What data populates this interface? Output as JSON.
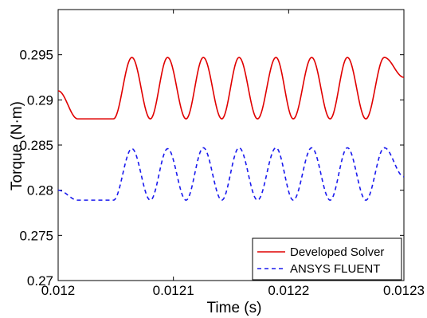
{
  "chart_data": {
    "type": "line",
    "title": "",
    "xlabel": "Time (s)",
    "ylabel": "Torque (N·m)",
    "xlim": [
      0.012,
      0.0123
    ],
    "ylim": [
      0.27,
      0.3
    ],
    "x_ticks": [
      "0.012",
      "0.0121",
      "0.0122",
      "0.0123"
    ],
    "y_ticks": [
      "0.27",
      "0.275",
      "0.28",
      "0.285",
      "0.29",
      "0.295"
    ],
    "grid": false,
    "legend_position": "bottom-right",
    "series": [
      {
        "name": "Developed Solver",
        "color": "#e00000",
        "style": "solid",
        "period_s": 3.13e-05,
        "peaks": [
          [
            0.012064,
            0.2947
          ],
          [
            0.012095,
            0.2947
          ],
          [
            0.012126,
            0.2947
          ],
          [
            0.012157,
            0.2947
          ],
          [
            0.012189,
            0.2947
          ],
          [
            0.01222,
            0.2947
          ],
          [
            0.012251,
            0.2947
          ],
          [
            0.012283,
            0.2947
          ]
        ],
        "troughs": [
          [
            0.012017,
            0.2879
          ],
          [
            0.012048,
            0.2879
          ],
          [
            0.01208,
            0.2879
          ],
          [
            0.012111,
            0.2879
          ],
          [
            0.012142,
            0.2879
          ],
          [
            0.012173,
            0.2879
          ],
          [
            0.012204,
            0.2879
          ],
          [
            0.012236,
            0.2879
          ],
          [
            0.012267,
            0.2879
          ]
        ],
        "start": [
          0.012,
          0.291
        ],
        "end": [
          0.0123,
          0.2925
        ]
      },
      {
        "name": "ANSYS FLUENT",
        "color": "#1a1aee",
        "style": "dashed",
        "period_s": 3.13e-05,
        "peaks": [
          [
            0.012064,
            0.2846
          ],
          [
            0.012095,
            0.2846
          ],
          [
            0.012126,
            0.2847
          ],
          [
            0.012157,
            0.2847
          ],
          [
            0.012189,
            0.2847
          ],
          [
            0.01222,
            0.2847
          ],
          [
            0.012251,
            0.2847
          ],
          [
            0.012283,
            0.2847
          ]
        ],
        "troughs": [
          [
            0.012017,
            0.2789
          ],
          [
            0.012048,
            0.2789
          ],
          [
            0.01208,
            0.2789
          ],
          [
            0.012111,
            0.2789
          ],
          [
            0.012142,
            0.2789
          ],
          [
            0.012173,
            0.2789
          ],
          [
            0.012204,
            0.2789
          ],
          [
            0.012236,
            0.2789
          ],
          [
            0.012267,
            0.2789
          ]
        ],
        "start": [
          0.012,
          0.28
        ],
        "end": [
          0.0123,
          0.2815
        ]
      }
    ]
  }
}
